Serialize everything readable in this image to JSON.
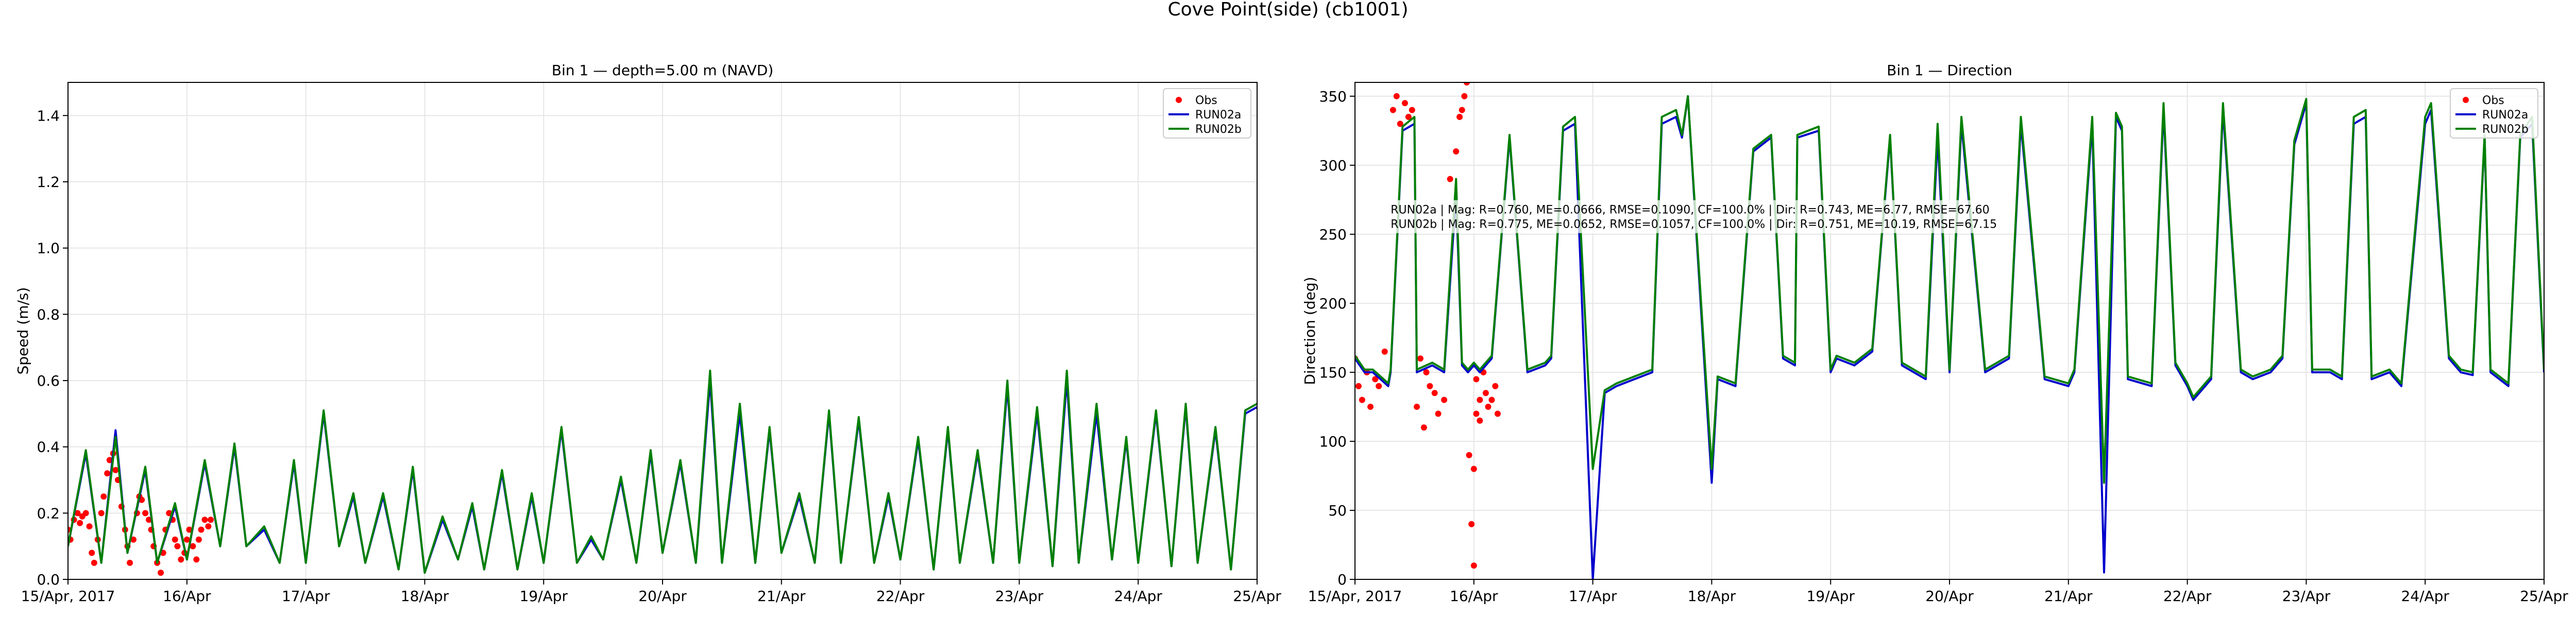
{
  "suptitle": "Cove Point(side) (cb1001)",
  "chart_data": [
    {
      "type": "line",
      "title": "Bin 1 — depth=5.00 m (NAVD)",
      "xlabel": "",
      "ylabel": "Speed (m/s)",
      "xlim": [
        0,
        10
      ],
      "ylim": [
        0,
        1.5
      ],
      "x_ticks": [
        0,
        1,
        2,
        3,
        4,
        5,
        6,
        7,
        8,
        9,
        10
      ],
      "x_tick_labels": [
        "15/Apr, 2017",
        "16/Apr",
        "17/Apr",
        "18/Apr",
        "19/Apr",
        "20/Apr",
        "21/Apr",
        "22/Apr",
        "23/Apr",
        "24/Apr",
        "25/Apr"
      ],
      "y_ticks": [
        0,
        0.2,
        0.4,
        0.6,
        0.8,
        1.0,
        1.2,
        1.4
      ],
      "y_tick_labels": [
        "0.0",
        "0.2",
        "0.4",
        "0.6",
        "0.8",
        "1.0",
        "1.2",
        "1.4"
      ],
      "grid": true,
      "legend": "top-right",
      "series": [
        {
          "name": "Obs",
          "kind": "scatter",
          "color": "#ff0000",
          "x": [
            0.0,
            0.02,
            0.05,
            0.08,
            0.1,
            0.12,
            0.15,
            0.18,
            0.2,
            0.22,
            0.25,
            0.28,
            0.3,
            0.33,
            0.35,
            0.38,
            0.4,
            0.42,
            0.45,
            0.48,
            0.5,
            0.52,
            0.55,
            0.58,
            0.6,
            0.62,
            0.65,
            0.68,
            0.7,
            0.72,
            0.75,
            0.78,
            0.8,
            0.82,
            0.85,
            0.88,
            0.9,
            0.92,
            0.95,
            0.98,
            1.0,
            1.02,
            1.05,
            1.08,
            1.1,
            1.12,
            1.15,
            1.18,
            1.2
          ],
          "y": [
            0.15,
            0.12,
            0.18,
            0.2,
            0.17,
            0.19,
            0.2,
            0.16,
            0.08,
            0.05,
            0.12,
            0.2,
            0.25,
            0.32,
            0.36,
            0.38,
            0.33,
            0.3,
            0.22,
            0.15,
            0.1,
            0.05,
            0.12,
            0.2,
            0.25,
            0.24,
            0.2,
            0.18,
            0.15,
            0.1,
            0.05,
            0.02,
            0.08,
            0.15,
            0.2,
            0.18,
            0.12,
            0.1,
            0.06,
            0.08,
            0.12,
            0.15,
            0.1,
            0.06,
            0.12,
            0.15,
            0.18,
            0.16,
            0.18
          ]
        },
        {
          "name": "RUN02a",
          "kind": "line",
          "color": "#0000cc",
          "x": [
            0,
            0.15,
            0.28,
            0.4,
            0.5,
            0.65,
            0.75,
            0.9,
            1.0,
            1.15,
            1.28,
            1.4,
            1.5,
            1.65,
            1.78,
            1.9,
            2.0,
            2.15,
            2.28,
            2.4,
            2.5,
            2.65,
            2.78,
            2.9,
            3.0,
            3.15,
            3.28,
            3.4,
            3.5,
            3.65,
            3.78,
            3.9,
            4.0,
            4.15,
            4.28,
            4.4,
            4.5,
            4.65,
            4.78,
            4.9,
            5.0,
            5.15,
            5.28,
            5.4,
            5.5,
            5.65,
            5.78,
            5.9,
            6.0,
            6.15,
            6.28,
            6.4,
            6.5,
            6.65,
            6.78,
            6.9,
            7.0,
            7.15,
            7.28,
            7.4,
            7.5,
            7.65,
            7.78,
            7.9,
            8.0,
            8.15,
            8.28,
            8.4,
            8.5,
            8.65,
            8.78,
            8.9,
            9.0,
            9.15,
            9.28,
            9.4,
            9.5,
            9.65,
            9.78,
            9.9,
            10.0
          ],
          "y": [
            0.1,
            0.38,
            0.05,
            0.45,
            0.08,
            0.33,
            0.05,
            0.22,
            0.06,
            0.35,
            0.1,
            0.4,
            0.1,
            0.15,
            0.05,
            0.35,
            0.05,
            0.5,
            0.1,
            0.25,
            0.05,
            0.25,
            0.03,
            0.33,
            0.02,
            0.18,
            0.06,
            0.22,
            0.03,
            0.32,
            0.03,
            0.25,
            0.05,
            0.45,
            0.05,
            0.12,
            0.06,
            0.3,
            0.05,
            0.38,
            0.08,
            0.35,
            0.05,
            0.6,
            0.05,
            0.5,
            0.05,
            0.45,
            0.08,
            0.25,
            0.05,
            0.5,
            0.05,
            0.48,
            0.05,
            0.25,
            0.06,
            0.42,
            0.03,
            0.45,
            0.05,
            0.38,
            0.05,
            0.58,
            0.05,
            0.5,
            0.04,
            0.6,
            0.05,
            0.5,
            0.06,
            0.42,
            0.05,
            0.5,
            0.04,
            0.52,
            0.05,
            0.45,
            0.03,
            0.5,
            0.52
          ]
        },
        {
          "name": "RUN02b",
          "kind": "line",
          "color": "#008000",
          "x": [
            0,
            0.15,
            0.28,
            0.4,
            0.5,
            0.65,
            0.75,
            0.9,
            1.0,
            1.15,
            1.28,
            1.4,
            1.5,
            1.65,
            1.78,
            1.9,
            2.0,
            2.15,
            2.28,
            2.4,
            2.5,
            2.65,
            2.78,
            2.9,
            3.0,
            3.15,
            3.28,
            3.4,
            3.5,
            3.65,
            3.78,
            3.9,
            4.0,
            4.15,
            4.28,
            4.4,
            4.5,
            4.65,
            4.78,
            4.9,
            5.0,
            5.15,
            5.28,
            5.4,
            5.5,
            5.65,
            5.78,
            5.9,
            6.0,
            6.15,
            6.28,
            6.4,
            6.5,
            6.65,
            6.78,
            6.9,
            7.0,
            7.15,
            7.28,
            7.4,
            7.5,
            7.65,
            7.78,
            7.9,
            8.0,
            8.15,
            8.28,
            8.4,
            8.5,
            8.65,
            8.78,
            8.9,
            9.0,
            9.15,
            9.28,
            9.4,
            9.5,
            9.65,
            9.78,
            9.9,
            10.0
          ],
          "y": [
            0.1,
            0.39,
            0.05,
            0.43,
            0.08,
            0.34,
            0.05,
            0.23,
            0.06,
            0.36,
            0.1,
            0.41,
            0.1,
            0.16,
            0.05,
            0.36,
            0.05,
            0.51,
            0.1,
            0.26,
            0.05,
            0.26,
            0.03,
            0.34,
            0.02,
            0.19,
            0.06,
            0.23,
            0.03,
            0.33,
            0.03,
            0.26,
            0.05,
            0.46,
            0.05,
            0.13,
            0.06,
            0.31,
            0.05,
            0.39,
            0.08,
            0.36,
            0.05,
            0.63,
            0.05,
            0.53,
            0.05,
            0.46,
            0.08,
            0.26,
            0.05,
            0.51,
            0.05,
            0.49,
            0.05,
            0.26,
            0.06,
            0.43,
            0.03,
            0.46,
            0.05,
            0.39,
            0.05,
            0.6,
            0.05,
            0.52,
            0.04,
            0.63,
            0.05,
            0.53,
            0.06,
            0.43,
            0.05,
            0.51,
            0.04,
            0.53,
            0.05,
            0.46,
            0.03,
            0.51,
            0.53
          ]
        }
      ]
    },
    {
      "type": "line",
      "title": "Bin 1 — Direction",
      "xlabel": "",
      "ylabel": "Direction (deg)",
      "xlim": [
        0,
        10
      ],
      "ylim": [
        0,
        360
      ],
      "x_ticks": [
        0,
        1,
        2,
        3,
        4,
        5,
        6,
        7,
        8,
        9,
        10
      ],
      "x_tick_labels": [
        "15/Apr, 2017",
        "16/Apr",
        "17/Apr",
        "18/Apr",
        "19/Apr",
        "20/Apr",
        "21/Apr",
        "22/Apr",
        "23/Apr",
        "24/Apr",
        "25/Apr"
      ],
      "y_ticks": [
        0,
        50,
        100,
        150,
        200,
        250,
        300,
        350
      ],
      "y_tick_labels": [
        "0",
        "50",
        "100",
        "150",
        "200",
        "250",
        "300",
        "350"
      ],
      "grid": true,
      "legend": "top-right",
      "annotation": [
        "RUN02a | Mag: R=0.760, ME=0.0666, RMSE=0.1090, CF=100.0% | Dir: R=0.743, ME=6.77, RMSE=67.60",
        "RUN02b | Mag: R=0.775, ME=0.0652, RMSE=0.1057, CF=100.0% | Dir: R=0.751, ME=10.19, RMSE=67.15"
      ],
      "series": [
        {
          "name": "Obs",
          "kind": "scatter",
          "color": "#ff0000",
          "x": [
            0.0,
            0.03,
            0.06,
            0.1,
            0.13,
            0.17,
            0.2,
            0.25,
            0.32,
            0.35,
            0.38,
            0.42,
            0.45,
            0.48,
            0.52,
            0.55,
            0.58,
            0.6,
            0.63,
            0.67,
            0.7,
            0.75,
            0.8,
            0.85,
            0.88,
            0.9,
            0.92,
            0.94,
            0.96,
            0.98,
            1.0,
            1.0,
            1.02,
            1.02,
            1.05,
            1.05,
            1.08,
            1.1,
            1.12,
            1.15,
            1.18,
            1.2
          ],
          "y": [
            160,
            140,
            130,
            150,
            125,
            145,
            140,
            165,
            340,
            350,
            330,
            345,
            335,
            340,
            125,
            160,
            110,
            150,
            140,
            135,
            120,
            130,
            290,
            310,
            335,
            340,
            350,
            360,
            90,
            40,
            10,
            80,
            145,
            120,
            130,
            115,
            150,
            135,
            125,
            130,
            140,
            120
          ]
        },
        {
          "name": "RUN02a",
          "kind": "line",
          "color": "#0000cc",
          "x": [
            0,
            0.08,
            0.15,
            0.28,
            0.3,
            0.4,
            0.5,
            0.52,
            0.65,
            0.75,
            0.85,
            0.9,
            0.95,
            1.0,
            1.05,
            1.15,
            1.3,
            1.45,
            1.6,
            1.65,
            1.75,
            1.85,
            2.0,
            2.1,
            2.2,
            2.35,
            2.5,
            2.58,
            2.7,
            2.75,
            2.8,
            3.0,
            3.05,
            3.2,
            3.35,
            3.5,
            3.6,
            3.7,
            3.72,
            3.9,
            4.0,
            4.05,
            4.2,
            4.35,
            4.5,
            4.6,
            4.7,
            4.8,
            4.9,
            5.0,
            5.1,
            5.3,
            5.5,
            5.6,
            5.8,
            6.0,
            6.05,
            6.2,
            6.3,
            6.4,
            6.45,
            6.5,
            6.7,
            6.8,
            6.9,
            7.0,
            7.05,
            7.2,
            7.3,
            7.45,
            7.55,
            7.7,
            7.8,
            7.9,
            8.0,
            8.05,
            8.2,
            8.3,
            8.4,
            8.5,
            8.55,
            8.7,
            8.8,
            9.0,
            9.05,
            9.2,
            9.3,
            9.4,
            9.5,
            9.55,
            9.7,
            9.8,
            9.9,
            10.0
          ],
          "y": [
            160,
            150,
            150,
            140,
            150,
            325,
            330,
            150,
            155,
            150,
            280,
            155,
            150,
            155,
            150,
            160,
            320,
            150,
            155,
            160,
            325,
            330,
            0,
            135,
            140,
            145,
            150,
            330,
            335,
            320,
            350,
            70,
            145,
            140,
            310,
            320,
            160,
            155,
            320,
            325,
            150,
            160,
            155,
            165,
            320,
            155,
            150,
            145,
            320,
            150,
            330,
            150,
            160,
            330,
            145,
            140,
            150,
            330,
            5,
            335,
            325,
            145,
            140,
            340,
            155,
            140,
            130,
            145,
            340,
            150,
            145,
            150,
            160,
            315,
            345,
            150,
            150,
            145,
            330,
            335,
            145,
            150,
            140,
            330,
            340,
            160,
            150,
            148,
            320,
            150,
            140,
            320,
            330,
            150
          ]
        },
        {
          "name": "RUN02b",
          "kind": "line",
          "color": "#008000",
          "x": [
            0,
            0.08,
            0.15,
            0.28,
            0.3,
            0.4,
            0.5,
            0.52,
            0.65,
            0.75,
            0.85,
            0.9,
            0.95,
            1.0,
            1.05,
            1.15,
            1.3,
            1.45,
            1.6,
            1.65,
            1.75,
            1.85,
            2.0,
            2.1,
            2.2,
            2.35,
            2.5,
            2.58,
            2.7,
            2.75,
            2.8,
            3.0,
            3.05,
            3.2,
            3.35,
            3.5,
            3.6,
            3.7,
            3.72,
            3.9,
            4.0,
            4.05,
            4.2,
            4.35,
            4.5,
            4.6,
            4.7,
            4.8,
            4.9,
            5.0,
            5.1,
            5.3,
            5.5,
            5.6,
            5.8,
            6.0,
            6.05,
            6.2,
            6.3,
            6.4,
            6.45,
            6.5,
            6.7,
            6.8,
            6.9,
            7.0,
            7.05,
            7.2,
            7.3,
            7.45,
            7.55,
            7.7,
            7.8,
            7.9,
            8.0,
            8.05,
            8.2,
            8.3,
            8.4,
            8.5,
            8.55,
            8.7,
            8.8,
            9.0,
            9.05,
            9.2,
            9.3,
            9.4,
            9.5,
            9.55,
            9.7,
            9.8,
            9.9,
            10.0
          ],
          "y": [
            162,
            152,
            152,
            142,
            152,
            328,
            335,
            152,
            157,
            152,
            290,
            157,
            152,
            157,
            152,
            162,
            322,
            152,
            157,
            162,
            328,
            335,
            80,
            137,
            142,
            147,
            152,
            335,
            340,
            322,
            350,
            80,
            147,
            142,
            312,
            322,
            162,
            157,
            322,
            328,
            152,
            162,
            157,
            167,
            322,
            157,
            152,
            147,
            330,
            152,
            335,
            152,
            162,
            335,
            147,
            142,
            152,
            335,
            70,
            338,
            328,
            147,
            142,
            345,
            157,
            142,
            132,
            147,
            345,
            152,
            147,
            152,
            162,
            318,
            348,
            152,
            152,
            147,
            335,
            340,
            147,
            152,
            142,
            335,
            345,
            162,
            152,
            150,
            322,
            152,
            142,
            322,
            335,
            152
          ]
        }
      ]
    }
  ]
}
